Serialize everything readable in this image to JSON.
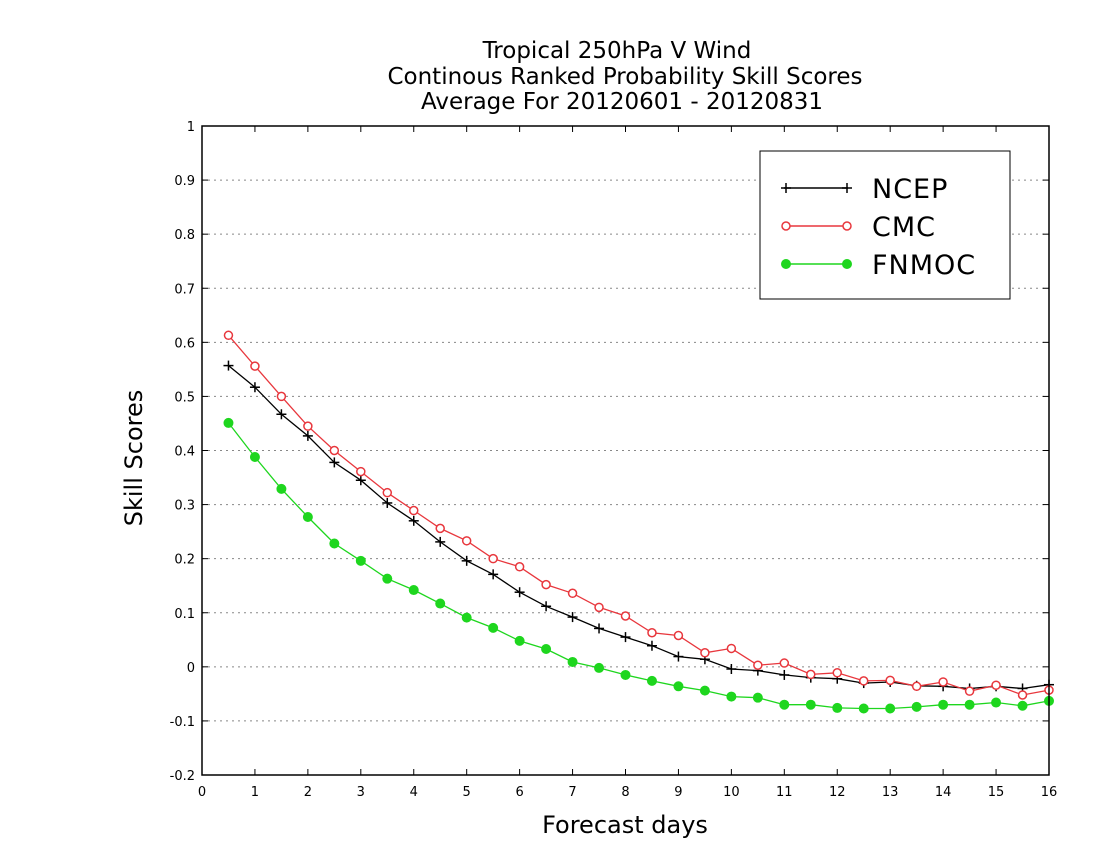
{
  "chart_data": {
    "type": "line",
    "title": [
      "Tropical 250hPa V Wind",
      "Continous Ranked Probability Skill Scores",
      "Average For 20120601 - 20120831"
    ],
    "xlabel": "Forecast days",
    "ylabel": "Skill Scores",
    "xlim": [
      0,
      16
    ],
    "ylim": [
      -0.2,
      1
    ],
    "xticks": [
      0,
      1,
      2,
      3,
      4,
      5,
      6,
      7,
      8,
      9,
      10,
      11,
      12,
      13,
      14,
      15,
      16
    ],
    "yticks": [
      -0.2,
      -0.1,
      0,
      0.1,
      0.2,
      0.3,
      0.4,
      0.5,
      0.6,
      0.7,
      0.8,
      0.9,
      1
    ],
    "ytick_labels": [
      "-0.2",
      "-0.1",
      "0",
      "0.1",
      "0.2",
      "0.3",
      "0.4",
      "0.5",
      "0.6",
      "0.7",
      "0.8",
      "0.9",
      "1"
    ],
    "grid": "horizontal-dotted",
    "legend_position": "top-right",
    "x": [
      0.5,
      1,
      1.5,
      2,
      2.5,
      3,
      3.5,
      4,
      4.5,
      5,
      5.5,
      6,
      6.5,
      7,
      7.5,
      8,
      8.5,
      9,
      9.5,
      10,
      10.5,
      11,
      11.5,
      12,
      12.5,
      13,
      13.5,
      14,
      14.5,
      15,
      15.5,
      16
    ],
    "series": [
      {
        "name": "NCEP",
        "color": "#000000",
        "marker": "plus",
        "values": [
          0.557,
          0.517,
          0.467,
          0.427,
          0.378,
          0.345,
          0.303,
          0.27,
          0.231,
          0.196,
          0.171,
          0.138,
          0.112,
          0.092,
          0.071,
          0.055,
          0.039,
          0.019,
          0.014,
          -0.004,
          -0.007,
          -0.015,
          -0.02,
          -0.022,
          -0.03,
          -0.028,
          -0.035,
          -0.036,
          -0.04,
          -0.036,
          -0.04,
          -0.033
        ]
      },
      {
        "name": "CMC",
        "color": "#e8373d",
        "marker": "open-circle",
        "values": [
          0.613,
          0.556,
          0.5,
          0.445,
          0.4,
          0.361,
          0.322,
          0.289,
          0.256,
          0.233,
          0.2,
          0.185,
          0.152,
          0.136,
          0.11,
          0.094,
          0.063,
          0.058,
          0.026,
          0.034,
          0.003,
          0.007,
          -0.014,
          -0.011,
          -0.026,
          -0.025,
          -0.036,
          -0.028,
          -0.045,
          -0.034,
          -0.052,
          -0.043
        ]
      },
      {
        "name": "FNMOC",
        "color": "#1ed61e",
        "marker": "filled-circle",
        "values": [
          0.451,
          0.388,
          0.329,
          0.277,
          0.228,
          0.196,
          0.163,
          0.142,
          0.117,
          0.091,
          0.072,
          0.048,
          0.033,
          0.009,
          -0.002,
          -0.015,
          -0.026,
          -0.036,
          -0.044,
          -0.055,
          -0.057,
          -0.07,
          -0.07,
          -0.076,
          -0.077,
          -0.077,
          -0.074,
          -0.07,
          -0.07,
          -0.066,
          -0.072,
          -0.063
        ]
      }
    ]
  }
}
